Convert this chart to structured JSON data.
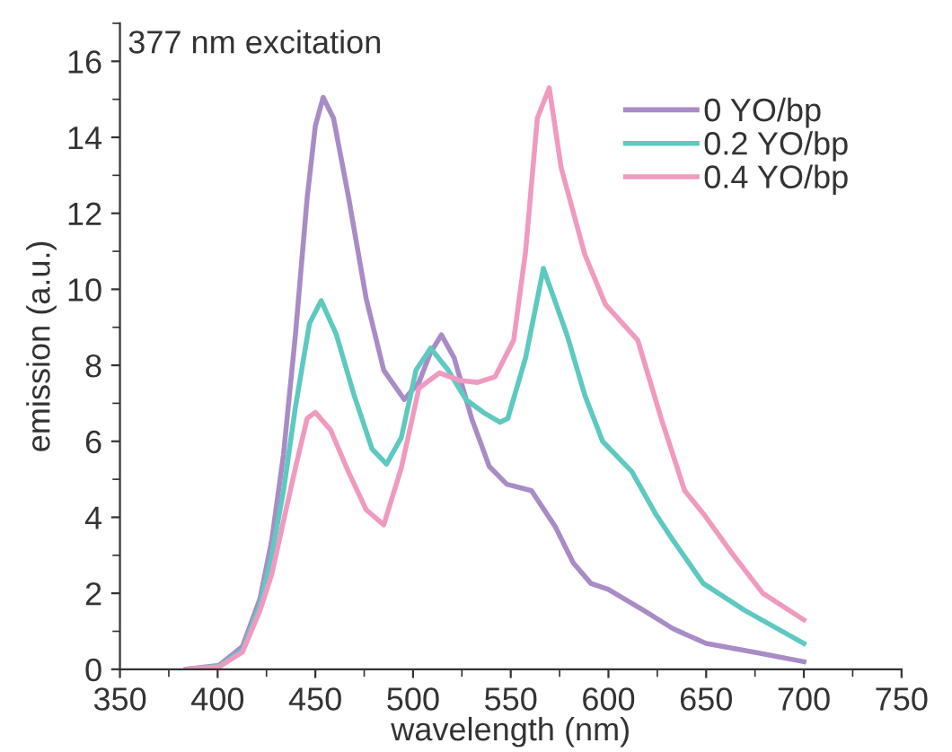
{
  "chart_data": {
    "type": "line",
    "xlabel": "wavelength (nm)",
    "ylabel": "emission (a.u.)",
    "annotations": [
      "377 nm excitation"
    ],
    "xlim": [
      350,
      750
    ],
    "ylim": [
      0,
      17
    ],
    "xticks": [
      350,
      400,
      450,
      500,
      550,
      600,
      650,
      700,
      750
    ],
    "yticks": [
      0,
      2,
      4,
      6,
      8,
      10,
      12,
      14,
      16
    ],
    "grid": false,
    "legend": "top right",
    "line_style": "solid",
    "marker": "none",
    "series": [
      {
        "name": "0 YO/bp",
        "color": "#a98bc6",
        "x": [
          384,
          400.6,
          412.7,
          421.7,
          427.7,
          433.7,
          439.8,
          445.8,
          450,
          454,
          459.3,
          466.9,
          476,
          485,
          495.5,
          503,
          509,
          514.5,
          521,
          530,
          539,
          548,
          560.6,
          572.7,
          582,
          591,
          600,
          618,
          633,
          650,
          675.8,
          700
        ],
        "values": [
          0,
          0.1,
          0.6,
          1.86,
          3.4,
          5.65,
          8.8,
          12.4,
          14.3,
          15.05,
          14.5,
          12.45,
          9.76,
          7.87,
          7.1,
          7.55,
          8.34,
          8.8,
          8.2,
          6.6,
          5.34,
          4.87,
          4.7,
          3.76,
          2.8,
          2.26,
          2.1,
          1.55,
          1.07,
          0.68,
          0.44,
          0.2
        ]
      },
      {
        "name": "0.2 YO/bp",
        "color": "#5ec9c0",
        "x": [
          384,
          400.6,
          412.7,
          421.7,
          427.7,
          433.7,
          439.8,
          447,
          453,
          460.8,
          469.9,
          479,
          486.4,
          494,
          501.5,
          509,
          518,
          527,
          536,
          544.6,
          548.5,
          557.6,
          566.7,
          578.8,
          588,
          597,
          612,
          624,
          633,
          648.5,
          669.7,
          700
        ],
        "values": [
          0,
          0.08,
          0.5,
          1.7,
          3.0,
          4.7,
          6.9,
          9.1,
          9.7,
          8.8,
          7.2,
          5.8,
          5.4,
          6.1,
          7.87,
          8.45,
          7.87,
          7.1,
          6.76,
          6.5,
          6.6,
          8.2,
          10.55,
          8.8,
          7.2,
          6.0,
          5.2,
          4.1,
          3.4,
          2.26,
          1.55,
          0.68
        ]
      },
      {
        "name": "0.4 YO/bp",
        "color": "#f09ac0",
        "x": [
          384,
          400.6,
          412.7,
          421.7,
          427.7,
          433.7,
          439.8,
          445.8,
          450,
          457.8,
          466.9,
          476,
          485,
          494,
          503,
          513.6,
          524,
          533,
          542,
          551.5,
          557.6,
          563.6,
          569.7,
          575.8,
          588,
          598.5,
          615,
          627,
          639,
          648.5,
          664,
          679,
          700
        ],
        "values": [
          0,
          0.06,
          0.45,
          1.55,
          2.5,
          3.9,
          5.3,
          6.6,
          6.76,
          6.3,
          5.2,
          4.2,
          3.8,
          5.3,
          7.4,
          7.8,
          7.6,
          7.55,
          7.7,
          8.66,
          11,
          14.5,
          15.3,
          13.2,
          10.9,
          9.6,
          8.66,
          6.6,
          4.7,
          4.1,
          3.0,
          2.0,
          1.3
        ]
      }
    ]
  }
}
